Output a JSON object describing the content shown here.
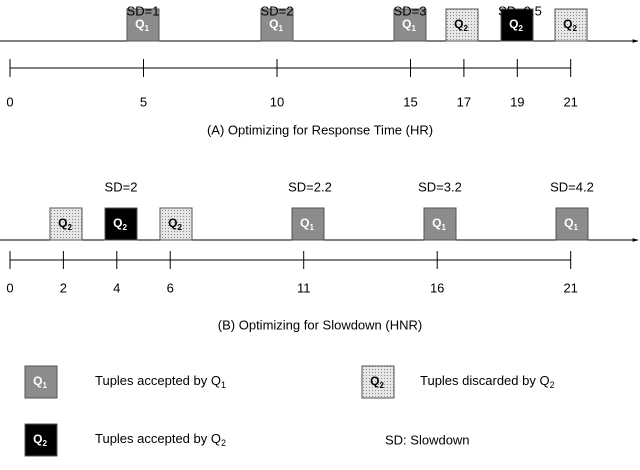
{
  "panel_a": {
    "sd_labels": [
      "SD=1",
      "SD=2",
      "SD=3",
      "SD=9.5"
    ],
    "boxes": [
      {
        "q": "Q",
        "sub": "1",
        "color": "#8c8c8c"
      },
      {
        "q": "Q",
        "sub": "1",
        "color": "#8c8c8c"
      },
      {
        "q": "Q",
        "sub": "1",
        "color": "#8c8c8c"
      },
      {
        "q": "Q",
        "sub": "2",
        "color": "dotted"
      },
      {
        "q": "Q",
        "sub": "2",
        "color": "#000000"
      },
      {
        "q": "Q",
        "sub": "2",
        "color": "dotted"
      }
    ],
    "ticks": [
      0,
      5,
      10,
      15,
      17,
      19,
      21
    ],
    "caption": "(A) Optimizing for Response Time (HR)"
  },
  "panel_b": {
    "sd_labels": [
      "SD=2",
      "SD=2.2",
      "SD=3.2",
      "SD=4.2"
    ],
    "boxes": [
      {
        "q": "Q",
        "sub": "2",
        "color": "dotted"
      },
      {
        "q": "Q",
        "sub": "2",
        "color": "#000000"
      },
      {
        "q": "Q",
        "sub": "2",
        "color": "dotted"
      },
      {
        "q": "Q",
        "sub": "1",
        "color": "#8c8c8c"
      },
      {
        "q": "Q",
        "sub": "1",
        "color": "#8c8c8c"
      },
      {
        "q": "Q",
        "sub": "1",
        "color": "#8c8c8c"
      }
    ],
    "ticks": [
      0,
      2,
      4,
      6,
      11,
      16,
      21
    ],
    "caption": "(B) Optimizing for Slowdown (HNR)"
  },
  "legend": [
    {
      "box": {
        "q": "Q",
        "sub": "1",
        "color": "#8c8c8c"
      },
      "text": "Tuples accepted by Q",
      "sub": "1"
    },
    {
      "box": {
        "q": "Q",
        "sub": "2",
        "color": "dotted"
      },
      "text": "Tuples discarded by Q",
      "sub": "2"
    },
    {
      "box": {
        "q": "Q",
        "sub": "2",
        "color": "#000000"
      },
      "text": "Tuples accepted by Q",
      "sub": "2"
    }
  ],
  "note": "SD: Slowdown"
}
